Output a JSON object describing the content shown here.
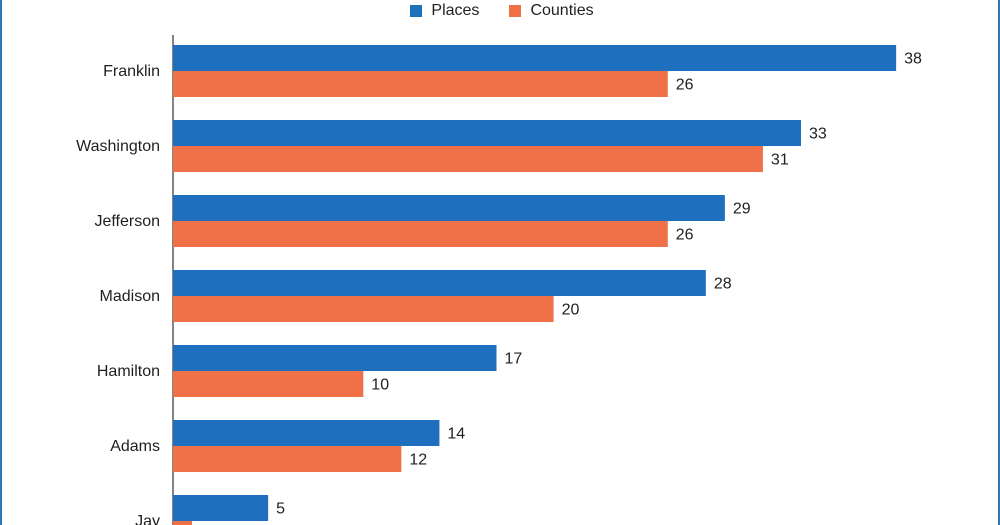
{
  "chart_data": {
    "type": "bar",
    "orientation": "horizontal",
    "categories": [
      "Franklin",
      "Washington",
      "Jefferson",
      "Madison",
      "Hamilton",
      "Adams",
      "Jay"
    ],
    "series": [
      {
        "name": "Places",
        "values": [
          38,
          33,
          29,
          28,
          17,
          14,
          5
        ],
        "color": "#1f6fbf"
      },
      {
        "name": "Counties",
        "values": [
          26,
          31,
          26,
          20,
          10,
          12,
          1
        ],
        "color": "#f07148"
      }
    ],
    "title": "",
    "xlabel": "",
    "ylabel": "",
    "xlim": [
      0,
      38
    ],
    "grid": false,
    "legend_position": "top-center",
    "data_labels": true
  }
}
